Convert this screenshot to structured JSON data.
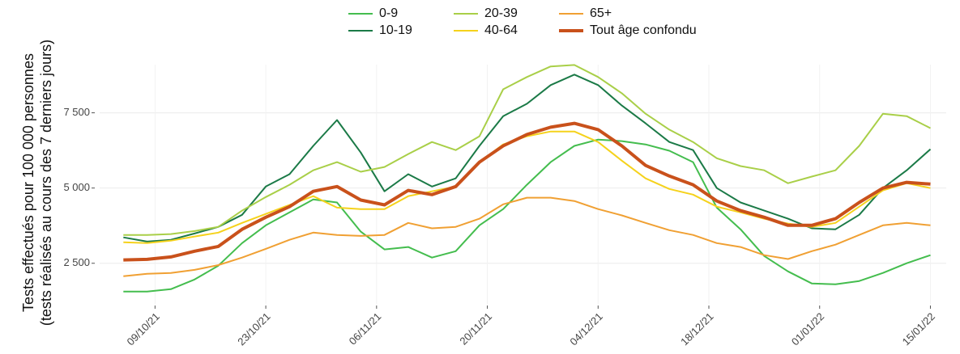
{
  "chart_data": {
    "type": "line",
    "y_label": [
      "Tests effectués pour 100 000 personnes",
      "(tests réalisés au cours des 7 derniers jours)"
    ],
    "x": [
      "05/10/21",
      "08/10/21",
      "11/10/21",
      "14/10/21",
      "17/10/21",
      "20/10/21",
      "23/10/21",
      "26/10/21",
      "29/10/21",
      "01/11/21",
      "04/11/21",
      "07/11/21",
      "10/11/21",
      "13/11/21",
      "16/11/21",
      "19/11/21",
      "22/11/21",
      "25/11/21",
      "28/11/21",
      "01/12/21",
      "04/12/21",
      "07/12/21",
      "10/12/21",
      "13/12/21",
      "16/12/21",
      "19/12/21",
      "22/12/21",
      "25/12/21",
      "28/12/21",
      "31/12/21",
      "03/01/22",
      "06/01/22",
      "09/01/22",
      "12/01/22",
      "15/01/22"
    ],
    "xlim": [
      "02/10/21",
      "17/01/22"
    ],
    "xticks": [
      "09/10/21",
      "23/10/21",
      "06/11/21",
      "20/11/21",
      "04/12/21",
      "18/12/21",
      "01/01/22",
      "15/01/22"
    ],
    "ylim": [
      1150,
      9100
    ],
    "yticks": [
      {
        "value": 2500,
        "label": "2 500"
      },
      {
        "value": 5000,
        "label": "5 000"
      },
      {
        "value": 7500,
        "label": "7 500"
      }
    ],
    "grid": true,
    "legend": "top",
    "series": [
      {
        "name": "0-9",
        "color": "#44bd4e",
        "values": [
          1560,
          1560,
          1640,
          1960,
          2420,
          3170,
          3760,
          4190,
          4620,
          4520,
          3550,
          2960,
          3040,
          2690,
          2900,
          3760,
          4300,
          5110,
          5860,
          6400,
          6610,
          6560,
          6450,
          6240,
          5860,
          4350,
          3630,
          2740,
          2230,
          1830,
          1800,
          1910,
          2180,
          2500,
          2770
        ]
      },
      {
        "name": "10-19",
        "color": "#1b7a47",
        "values": [
          3360,
          3220,
          3280,
          3490,
          3710,
          4110,
          5050,
          5460,
          6400,
          7260,
          6180,
          4890,
          5460,
          5050,
          5320,
          6400,
          7390,
          7800,
          8420,
          8770,
          8420,
          7740,
          7150,
          6530,
          6260,
          5000,
          4520,
          4250,
          3980,
          3660,
          3630,
          4110,
          5000,
          5590,
          6290
        ]
      },
      {
        "name": "20-39",
        "color": "#a9cf48",
        "values": [
          3440,
          3440,
          3470,
          3570,
          3710,
          4250,
          4700,
          5110,
          5590,
          5860,
          5540,
          5700,
          6130,
          6530,
          6260,
          6720,
          8280,
          8690,
          9040,
          9090,
          8690,
          8150,
          7470,
          6940,
          6530,
          5990,
          5730,
          5590,
          5160,
          5380,
          5590,
          6400,
          7470,
          7390,
          6990
        ]
      },
      {
        "name": "40-64",
        "color": "#f5d21c",
        "values": [
          3200,
          3170,
          3250,
          3390,
          3520,
          3840,
          4140,
          4440,
          4730,
          4350,
          4300,
          4300,
          4730,
          4890,
          5050,
          5860,
          6450,
          6720,
          6880,
          6880,
          6530,
          5910,
          5320,
          4970,
          4780,
          4380,
          4190,
          3980,
          3820,
          3710,
          3840,
          4380,
          4920,
          5160,
          5000
        ]
      },
      {
        "name": "65+",
        "color": "#f0a033",
        "values": [
          2070,
          2150,
          2180,
          2280,
          2440,
          2690,
          2980,
          3280,
          3520,
          3440,
          3410,
          3440,
          3840,
          3660,
          3710,
          3980,
          4460,
          4680,
          4680,
          4570,
          4300,
          4090,
          3840,
          3600,
          3440,
          3170,
          3040,
          2770,
          2640,
          2900,
          3120,
          3440,
          3760,
          3840,
          3760
        ]
      },
      {
        "name": "Tout âge confondu",
        "color": "#c9511b",
        "width": 4,
        "values": [
          2610,
          2630,
          2710,
          2900,
          3060,
          3630,
          4030,
          4380,
          4890,
          5050,
          4600,
          4440,
          4920,
          4780,
          5050,
          5860,
          6400,
          6780,
          7020,
          7150,
          6940,
          6400,
          5750,
          5400,
          5110,
          4570,
          4250,
          4030,
          3760,
          3760,
          3980,
          4520,
          5000,
          5190,
          5130
        ]
      }
    ]
  }
}
